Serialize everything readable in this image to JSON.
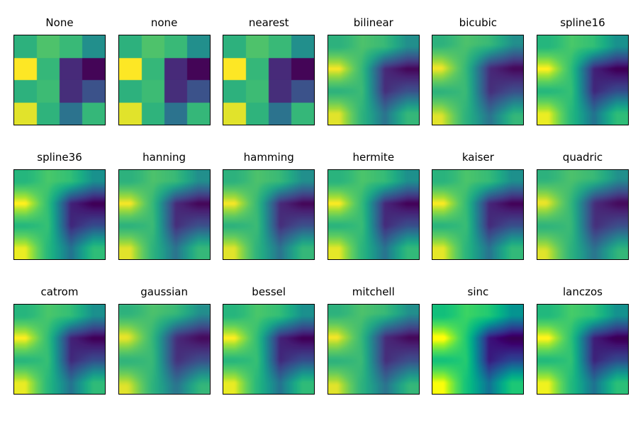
{
  "figure": {
    "background": "#ffffff",
    "spine_color": "#000000",
    "title_color": "#000000"
  },
  "chart_data": {
    "type": "heatmap",
    "title": "",
    "description": "Matplotlib interpolation methods demo: the same 4x4 random data shown in 18 subplots (3 rows x 6 columns), each using a different imshow interpolation method, viridis colormap, no axis ticks.",
    "grid_shape": [
      4,
      4
    ],
    "value_range": [
      0,
      1
    ],
    "grid_values": [
      [
        0.66,
        0.76,
        0.71,
        0.49
      ],
      [
        1.0,
        0.7,
        0.12,
        0.01
      ],
      [
        0.66,
        0.72,
        0.13,
        0.25
      ],
      [
        0.97,
        0.67,
        0.38,
        0.7
      ]
    ],
    "colormap": "viridis",
    "colormap_stops": [
      "#440154",
      "#482475",
      "#414487",
      "#355f8d",
      "#2a788e",
      "#21918c",
      "#22a884",
      "#35b779",
      "#5ec962",
      "#a0da39",
      "#fde725"
    ],
    "layout": {
      "rows": 3,
      "cols": 6,
      "ticks": "off",
      "grid": "off",
      "legend": "none"
    },
    "methods": [
      {
        "label": "None",
        "style": "pixelated",
        "filter": ""
      },
      {
        "label": "none",
        "style": "pixelated",
        "filter": ""
      },
      {
        "label": "nearest",
        "style": "pixelated",
        "filter": ""
      },
      {
        "label": "bilinear",
        "style": "smooth",
        "filter": ""
      },
      {
        "label": "bicubic",
        "style": "smooth",
        "filter": "blur(1.3px)"
      },
      {
        "label": "spline16",
        "style": "smooth",
        "filter": "contrast(1.1)"
      },
      {
        "label": "spline36",
        "style": "smooth",
        "filter": "contrast(1.1)"
      },
      {
        "label": "hanning",
        "style": "smooth",
        "filter": ""
      },
      {
        "label": "hamming",
        "style": "smooth",
        "filter": ""
      },
      {
        "label": "hermite",
        "style": "smooth",
        "filter": "contrast(1.04)"
      },
      {
        "label": "kaiser",
        "style": "smooth",
        "filter": "contrast(1.04)"
      },
      {
        "label": "quadric",
        "style": "smooth",
        "filter": "blur(2px)"
      },
      {
        "label": "catrom",
        "style": "smooth",
        "filter": "contrast(1.08)"
      },
      {
        "label": "gaussian",
        "style": "smooth",
        "filter": "blur(2.4px)"
      },
      {
        "label": "bessel",
        "style": "smooth",
        "filter": "contrast(1.08)"
      },
      {
        "label": "mitchell",
        "style": "smooth",
        "filter": "blur(0.8px)"
      },
      {
        "label": "sinc",
        "style": "smooth",
        "filter": "contrast(1.25) saturate(1.05)"
      },
      {
        "label": "lanczos",
        "style": "smooth",
        "filter": "contrast(1.15)"
      }
    ]
  }
}
